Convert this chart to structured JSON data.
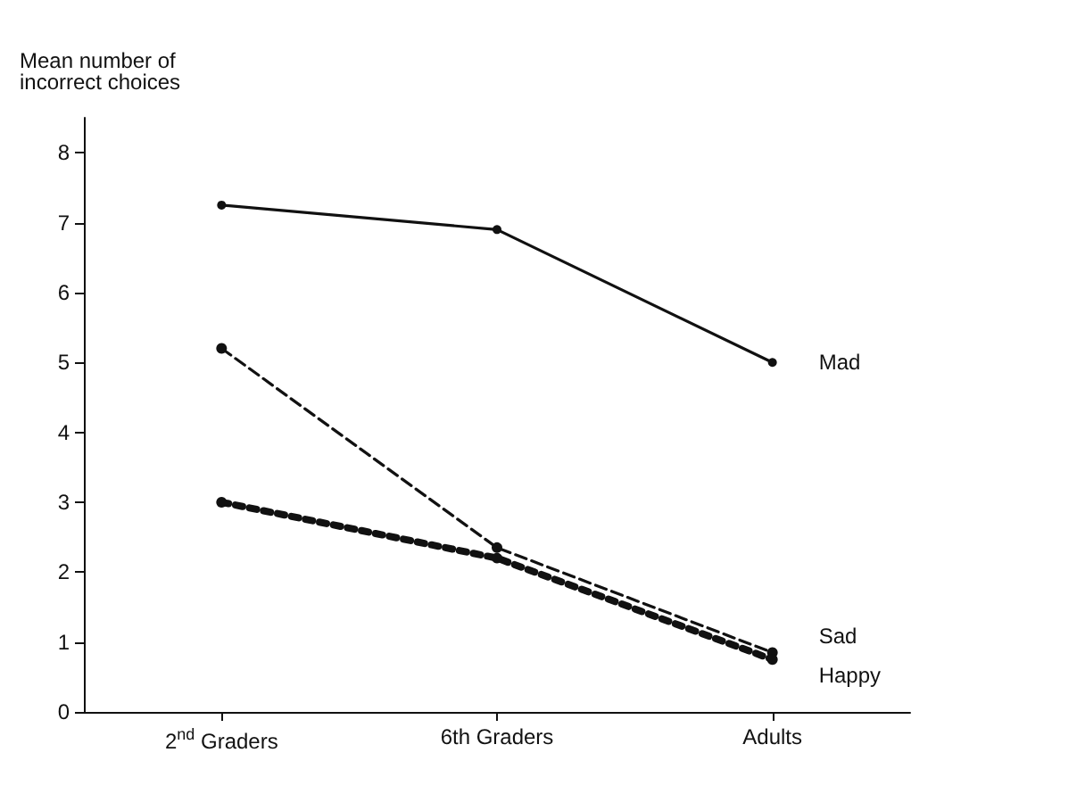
{
  "chart_data": {
    "type": "line",
    "ylabel": "Mean number of\nincorrect choices",
    "categories": [
      "2$^{nd}$ Graders",
      "6th Graders",
      "Adults"
    ],
    "ylim": [
      0,
      8.5
    ],
    "yticks": [
      0,
      1,
      2,
      3,
      4,
      5,
      6,
      7,
      8
    ],
    "grid": false,
    "legend": false,
    "marker": "circle",
    "series": [
      {
        "name": "Mad",
        "color": "#111111",
        "line_style": "solid",
        "values": [
          7.25,
          6.9,
          5.0
        ]
      },
      {
        "name": "Sad",
        "color": "#111111",
        "line_style": "dashed",
        "values": [
          5.2,
          2.35,
          0.85
        ]
      },
      {
        "name": "Happy",
        "color": "#111111",
        "line_style": "dotted",
        "values": [
          3.0,
          2.2,
          0.75
        ]
      }
    ]
  }
}
